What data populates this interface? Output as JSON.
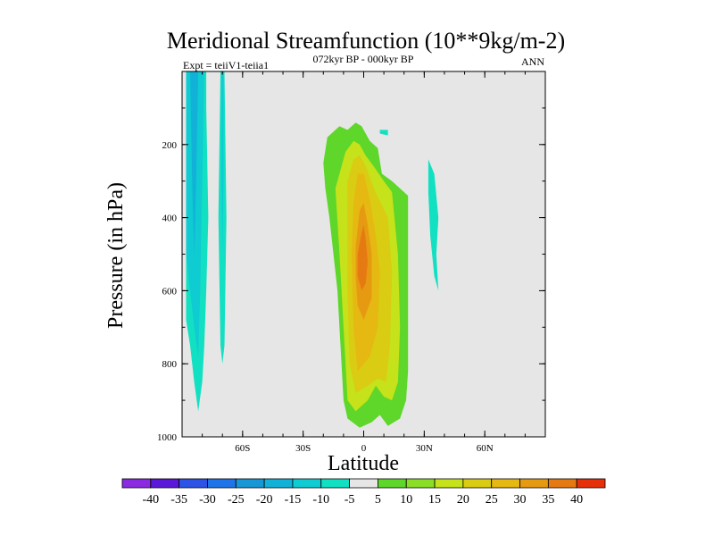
{
  "chart_data": {
    "type": "contour",
    "title": "Meridional Streamfunction (10**9kg/m-2)",
    "subtitle_left": "Expt = teiiV1-teiia1",
    "subtitle_center": "072kyr BP - 000kyr BP",
    "subtitle_right": "ANN",
    "xlabel": "Latitude",
    "ylabel": "Pressure (in hPa)",
    "x_ticks": [
      "60S",
      "30S",
      "0",
      "30N",
      "60N"
    ],
    "x_tick_values": [
      -60,
      -30,
      0,
      30,
      60
    ],
    "xlim": [
      -90,
      90
    ],
    "y_ticks": [
      "200",
      "400",
      "600",
      "800",
      "1000"
    ],
    "y_tick_values": [
      200,
      400,
      600,
      800,
      1000
    ],
    "ylim": [
      0,
      1000
    ],
    "y_inverted": true,
    "background_color": "#e6e6e6",
    "colorbar": {
      "labels": [
        "-40",
        "-35",
        "-30",
        "-25",
        "-20",
        "-15",
        "-10",
        "-5",
        "5",
        "10",
        "15",
        "20",
        "25",
        "30",
        "35",
        "40"
      ],
      "colors": [
        "#8a2be2",
        "#5a18d8",
        "#2d52e6",
        "#1e74e8",
        "#1897d6",
        "#12b2d8",
        "#0fcbd2",
        "#12e0c2",
        "#e6e6e6",
        "#5ed62a",
        "#8ade26",
        "#c5e21a",
        "#d9cc12",
        "#e6b812",
        "#e69a12",
        "#e67a12",
        "#e6300a"
      ]
    },
    "contours": [
      {
        "name": "neg-outer",
        "level": -5,
        "color": "#12e0c2",
        "points": [
          [
            -88,
            0
          ],
          [
            -78,
            0
          ],
          [
            -78,
            100
          ],
          [
            -77,
            400
          ],
          [
            -78,
            600
          ],
          [
            -79,
            750
          ],
          [
            -80,
            850
          ],
          [
            -82,
            930
          ],
          [
            -84,
            850
          ],
          [
            -86,
            750
          ],
          [
            -88,
            680
          ]
        ]
      },
      {
        "name": "neg-inner-a",
        "level": -10,
        "color": "#0fcbd2",
        "points": [
          [
            -88,
            0
          ],
          [
            -79,
            0
          ],
          [
            -80,
            300
          ],
          [
            -81,
            600
          ],
          [
            -82,
            780
          ],
          [
            -84,
            700
          ],
          [
            -86,
            600
          ],
          [
            -88,
            500
          ]
        ]
      },
      {
        "name": "neg-inner-b",
        "level": -15,
        "color": "#12b2d8",
        "points": [
          [
            -86,
            0
          ],
          [
            -82,
            0
          ],
          [
            -83,
            300
          ],
          [
            -84,
            500
          ],
          [
            -85,
            300
          ]
        ]
      },
      {
        "name": "neg-strip",
        "level": -5,
        "color": "#12e0c2",
        "points": [
          [
            -71,
            0
          ],
          [
            -69,
            0
          ],
          [
            -68,
            400
          ],
          [
            -69,
            750
          ],
          [
            -70,
            800
          ],
          [
            -71,
            750
          ],
          [
            -72,
            400
          ]
        ]
      },
      {
        "name": "neg-strip-inner",
        "level": -10,
        "color": "#0fcbd2",
        "points": [
          [
            -70.5,
            0
          ],
          [
            -69.5,
            0
          ],
          [
            -69.5,
            300
          ],
          [
            -70,
            500
          ],
          [
            -70.5,
            300
          ]
        ]
      },
      {
        "name": "neg-nh",
        "level": -5,
        "color": "#12e0c2",
        "points": [
          [
            32,
            240
          ],
          [
            35,
            280
          ],
          [
            37,
            400
          ],
          [
            36,
            500
          ],
          [
            37,
            600
          ],
          [
            35,
            560
          ],
          [
            33,
            450
          ],
          [
            32,
            330
          ]
        ]
      },
      {
        "name": "neg-small",
        "level": -5,
        "color": "#12e0c2",
        "points": [
          [
            8,
            160
          ],
          [
            12,
            160
          ],
          [
            12,
            175
          ],
          [
            8,
            170
          ]
        ]
      },
      {
        "name": "pos-5",
        "level": 5,
        "color": "#5ed62a",
        "points": [
          [
            -20,
            250
          ],
          [
            -18,
            180
          ],
          [
            -12,
            150
          ],
          [
            -8,
            160
          ],
          [
            -4,
            140
          ],
          [
            -1,
            150
          ],
          [
            3,
            190
          ],
          [
            7,
            210
          ],
          [
            9,
            280
          ],
          [
            14,
            300
          ],
          [
            22,
            340
          ],
          [
            22,
            600
          ],
          [
            22,
            820
          ],
          [
            21,
            900
          ],
          [
            18,
            950
          ],
          [
            12,
            970
          ],
          [
            8,
            940
          ],
          [
            4,
            960
          ],
          [
            -2,
            975
          ],
          [
            -8,
            950
          ],
          [
            -10,
            900
          ],
          [
            -13,
            600
          ],
          [
            -17,
            400
          ],
          [
            -19,
            320
          ]
        ]
      },
      {
        "name": "pos-10",
        "level": 10,
        "color": "#c5e21a",
        "points": [
          [
            -14,
            320
          ],
          [
            -9,
            220
          ],
          [
            -5,
            190
          ],
          [
            -2,
            200
          ],
          [
            1,
            230
          ],
          [
            5,
            260
          ],
          [
            10,
            300
          ],
          [
            14,
            330
          ],
          [
            17,
            500
          ],
          [
            18,
            700
          ],
          [
            17,
            850
          ],
          [
            14,
            900
          ],
          [
            10,
            890
          ],
          [
            6,
            860
          ],
          [
            2,
            900
          ],
          [
            -4,
            930
          ],
          [
            -8,
            900
          ],
          [
            -10,
            700
          ],
          [
            -12,
            500
          ]
        ]
      },
      {
        "name": "pos-15",
        "level": 15,
        "color": "#d9cc12",
        "points": [
          [
            -8,
            300
          ],
          [
            -5,
            240
          ],
          [
            -2,
            230
          ],
          [
            1,
            260
          ],
          [
            5,
            320
          ],
          [
            12,
            400
          ],
          [
            14,
            550
          ],
          [
            13,
            750
          ],
          [
            11,
            850
          ],
          [
            7,
            840
          ],
          [
            2,
            860
          ],
          [
            -4,
            880
          ],
          [
            -7,
            800
          ],
          [
            -8,
            600
          ]
        ]
      },
      {
        "name": "pos-20",
        "level": 20,
        "color": "#e6b812",
        "points": [
          [
            -5,
            360
          ],
          [
            -3,
            280
          ],
          [
            0,
            280
          ],
          [
            3,
            350
          ],
          [
            6,
            450
          ],
          [
            8,
            550
          ],
          [
            7,
            700
          ],
          [
            3,
            780
          ],
          [
            -3,
            820
          ],
          [
            -5,
            700
          ],
          [
            -6,
            500
          ]
        ]
      },
      {
        "name": "pos-25",
        "level": 25,
        "color": "#e69a12",
        "points": [
          [
            -4,
            480
          ],
          [
            -2,
            380
          ],
          [
            0,
            360
          ],
          [
            2,
            420
          ],
          [
            4,
            500
          ],
          [
            4,
            620
          ],
          [
            0,
            680
          ],
          [
            -3,
            640
          ],
          [
            -4,
            560
          ]
        ]
      },
      {
        "name": "pos-30",
        "level": 30,
        "color": "#e67a12",
        "points": [
          [
            -3,
            500
          ],
          [
            -1,
            440
          ],
          [
            0,
            420
          ],
          [
            1,
            460
          ],
          [
            2,
            520
          ],
          [
            1,
            580
          ],
          [
            -1,
            600
          ],
          [
            -3,
            560
          ]
        ]
      }
    ]
  }
}
